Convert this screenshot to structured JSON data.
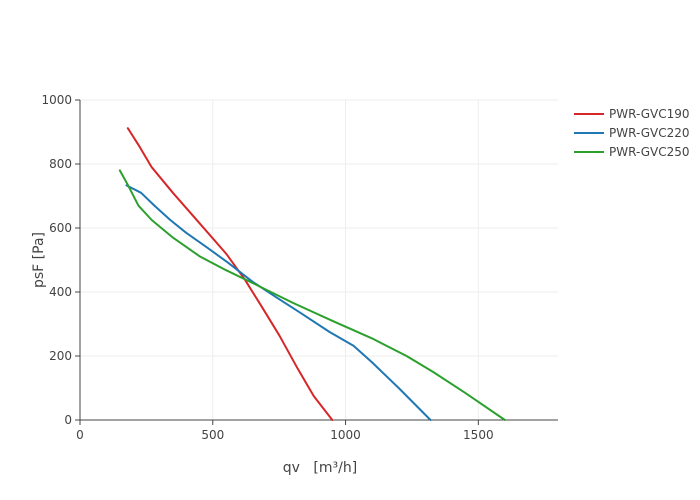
{
  "chart_data": {
    "type": "line",
    "xlabel": "qv",
    "xunit": "[m³/h]",
    "ylabel": "psF  [Pa]",
    "xlim": [
      0,
      1800
    ],
    "ylim": [
      0,
      1000
    ],
    "x_ticks": [
      0,
      500,
      1000,
      1500
    ],
    "y_ticks": [
      0,
      200,
      400,
      600,
      800,
      1000
    ],
    "grid": true,
    "legend_position": "top-right",
    "series": [
      {
        "name": "PWR-GVC190",
        "color": "#d62728",
        "x": [
          180,
          220,
          270,
          350,
          450,
          550,
          620,
          680,
          750,
          820,
          880,
          950
        ],
        "y": [
          912,
          860,
          790,
          710,
          615,
          520,
          440,
          360,
          265,
          160,
          75,
          0
        ]
      },
      {
        "name": "PWR-GVC220",
        "color": "#1f77b4",
        "x": [
          175,
          230,
          280,
          340,
          400,
          480,
          560,
          650,
          740,
          830,
          940,
          1030,
          1100,
          1200,
          1320
        ],
        "y": [
          733,
          710,
          670,
          625,
          585,
          538,
          490,
          432,
          383,
          335,
          275,
          232,
          180,
          100,
          0
        ]
      },
      {
        "name": "PWR-GVC250",
        "color": "#2ca02c",
        "x": [
          150,
          180,
          220,
          270,
          350,
          450,
          550,
          650,
          800,
          950,
          1100,
          1230,
          1330,
          1450,
          1600
        ],
        "y": [
          780,
          735,
          670,
          625,
          570,
          512,
          468,
          428,
          367,
          310,
          255,
          200,
          150,
          85,
          0
        ]
      }
    ]
  }
}
